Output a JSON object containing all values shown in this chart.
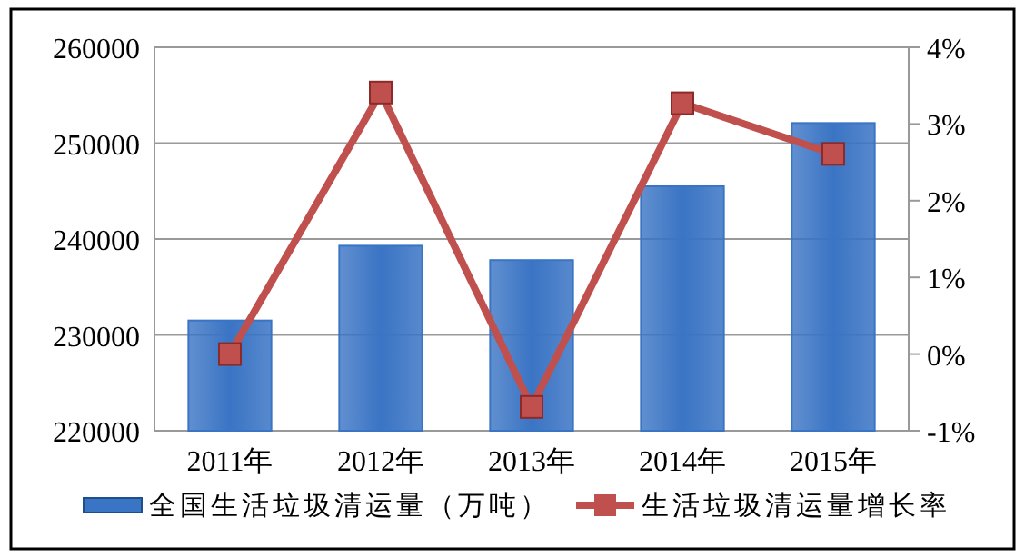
{
  "chart_data": {
    "type": "bar",
    "categories": [
      "2011年",
      "2012年",
      "2013年",
      "2014年",
      "2015年"
    ],
    "series": [
      {
        "name": "全国生活垃圾清运量（万吨）",
        "color": "#3a74c4",
        "values": [
          231500,
          239300,
          237800,
          245500,
          252100
        ]
      },
      {
        "name": "生活垃圾清运量增长率",
        "type": "line",
        "axis": "y2",
        "color": "#c0504d",
        "marker": "square",
        "values": [
          0,
          3.41,
          -0.69,
          3.27,
          2.61
        ]
      }
    ],
    "ylim": [
      220000,
      260000
    ],
    "yticks": [
      220000,
      230000,
      240000,
      250000,
      260000
    ],
    "y2lim": [
      -1,
      4
    ],
    "y2ticks": [
      {
        "value": -1,
        "label": "-1%"
      },
      {
        "value": 0,
        "label": "0%"
      },
      {
        "value": 1,
        "label": "1%"
      },
      {
        "value": 2,
        "label": "2%"
      },
      {
        "value": 3,
        "label": "3%"
      },
      {
        "value": 4,
        "label": "4%"
      }
    ],
    "grid": "y",
    "legend": "bottom"
  }
}
